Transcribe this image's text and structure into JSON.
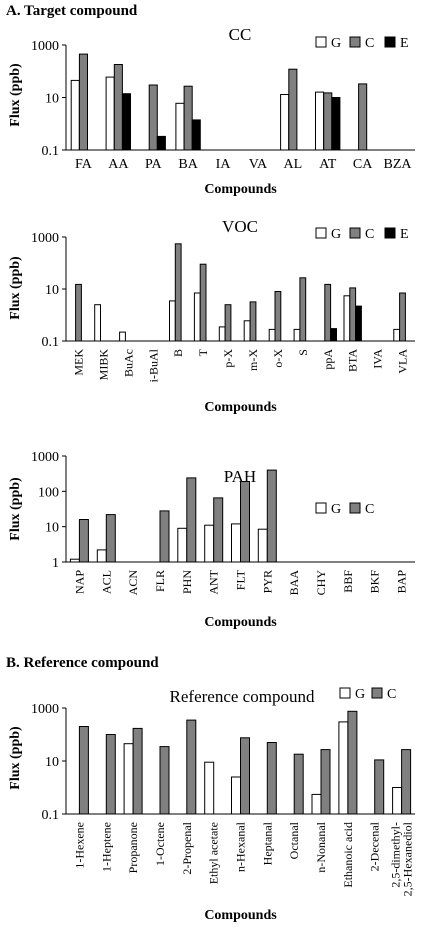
{
  "section_a_title": "A. Target compound",
  "section_b_title": "B. Reference compound",
  "colors": {
    "G": "#ffffff",
    "C": "#808080",
    "E": "#000000"
  },
  "chart_data": [
    {
      "type": "bar",
      "title": "CC",
      "ylabel": "Flux (ppb)",
      "xlabel": "Compounds",
      "yscale": "log",
      "ylim": [
        0.1,
        1000
      ],
      "yticks": [
        "0.1",
        "10",
        "1000"
      ],
      "legend_position": "top-right",
      "categories": [
        "FA",
        "AA",
        "PA",
        "BA",
        "IA",
        "VA",
        "AL",
        "AT",
        "CA",
        "BZA"
      ],
      "series": [
        {
          "name": "G",
          "values": [
            45,
            60,
            null,
            6,
            null,
            null,
            13,
            16,
            null,
            null
          ]
        },
        {
          "name": "C",
          "values": [
            450,
            180,
            30,
            27,
            null,
            null,
            120,
            15,
            33,
            null
          ]
        },
        {
          "name": "E",
          "values": [
            null,
            14,
            0.33,
            1.4,
            null,
            null,
            null,
            10,
            null,
            null
          ]
        }
      ]
    },
    {
      "type": "bar",
      "title": "VOC",
      "ylabel": "Flux (ppb)",
      "xlabel": "Compounds",
      "yscale": "log",
      "ylim": [
        0.1,
        1000
      ],
      "yticks": [
        "0.1",
        "10",
        "1000"
      ],
      "legend_position": "top-right",
      "categories": [
        "MEK",
        "MIBK",
        "BuAc",
        "i-BuAl",
        "B",
        "T",
        "p-X",
        "m-X",
        "o-X",
        "S",
        "ppA",
        "BTA",
        "IVA",
        "VLA"
      ],
      "series": [
        {
          "name": "G",
          "values": [
            null,
            2.5,
            0.22,
            null,
            3.5,
            7,
            0.35,
            0.6,
            0.28,
            0.28,
            null,
            5.5,
            null,
            0.28
          ]
        },
        {
          "name": "C",
          "values": [
            15,
            null,
            null,
            null,
            550,
            90,
            2.5,
            3.2,
            8,
            27,
            15,
            11,
            null,
            7
          ]
        },
        {
          "name": "E",
          "values": [
            null,
            null,
            null,
            null,
            null,
            null,
            null,
            null,
            null,
            null,
            0.3,
            2.2,
            null,
            null
          ]
        }
      ]
    },
    {
      "type": "bar",
      "title": "PAH",
      "ylabel": "Flux (ppb)",
      "xlabel": "Compounds",
      "yscale": "log",
      "ylim": [
        1,
        1000
      ],
      "yticks": [
        "1",
        "10",
        "100",
        "1000"
      ],
      "legend_position": "top-right",
      "categories": [
        "NAP",
        "ACL",
        "ACN",
        "FLR",
        "PHN",
        "ANT",
        "FLT",
        "PYR",
        "BAA",
        "CHY",
        "BBF",
        "BKF",
        "BAP"
      ],
      "series": [
        {
          "name": "G",
          "values": [
            1.2,
            2.2,
            null,
            null,
            9,
            11,
            12,
            8.5,
            null,
            null,
            null,
            null,
            null
          ]
        },
        {
          "name": "C",
          "values": [
            16,
            22,
            null,
            28,
            240,
            65,
            190,
            400,
            null,
            null,
            null,
            null,
            null
          ]
        }
      ]
    },
    {
      "type": "bar",
      "title": "Reference compound",
      "ylabel": "Flux (ppb)",
      "xlabel": "Compounds",
      "yscale": "log",
      "ylim": [
        0.1,
        1000
      ],
      "yticks": [
        "0.1",
        "10",
        "1000"
      ],
      "legend_position": "top-right",
      "categories": [
        "1-Hexene",
        "1-Heptene",
        "Propanone",
        "1-Octene",
        "2-Propenal",
        "Ethyl acetate",
        "n-Hexanal",
        "Heptanal",
        "Octanal",
        "n-Nonanal",
        "Ethanoic acid",
        "2-Decenal",
        "2,5-dimethyl-2,5-Hexanediol"
      ],
      "category_lines": [
        [
          "1-Hexene"
        ],
        [
          "1-Heptene"
        ],
        [
          "Propanone"
        ],
        [
          "1-Octene"
        ],
        [
          "2-Propenal"
        ],
        [
          "Ethyl acetate"
        ],
        [
          "n-Hexanal"
        ],
        [
          "Heptanal"
        ],
        [
          "Octanal"
        ],
        [
          "n-Nonanal"
        ],
        [
          "Ethanoic acid"
        ],
        [
          "2-Decenal"
        ],
        [
          "2,5-dimethyl-",
          "2,5-Hexanediol"
        ]
      ],
      "series": [
        {
          "name": "G",
          "values": [
            null,
            null,
            45,
            null,
            null,
            9,
            2.5,
            null,
            null,
            0.55,
            300,
            null,
            1
          ]
        },
        {
          "name": "C",
          "values": [
            200,
            100,
            170,
            35,
            350,
            null,
            75,
            50,
            18,
            27,
            750,
            11,
            27
          ]
        }
      ]
    }
  ]
}
